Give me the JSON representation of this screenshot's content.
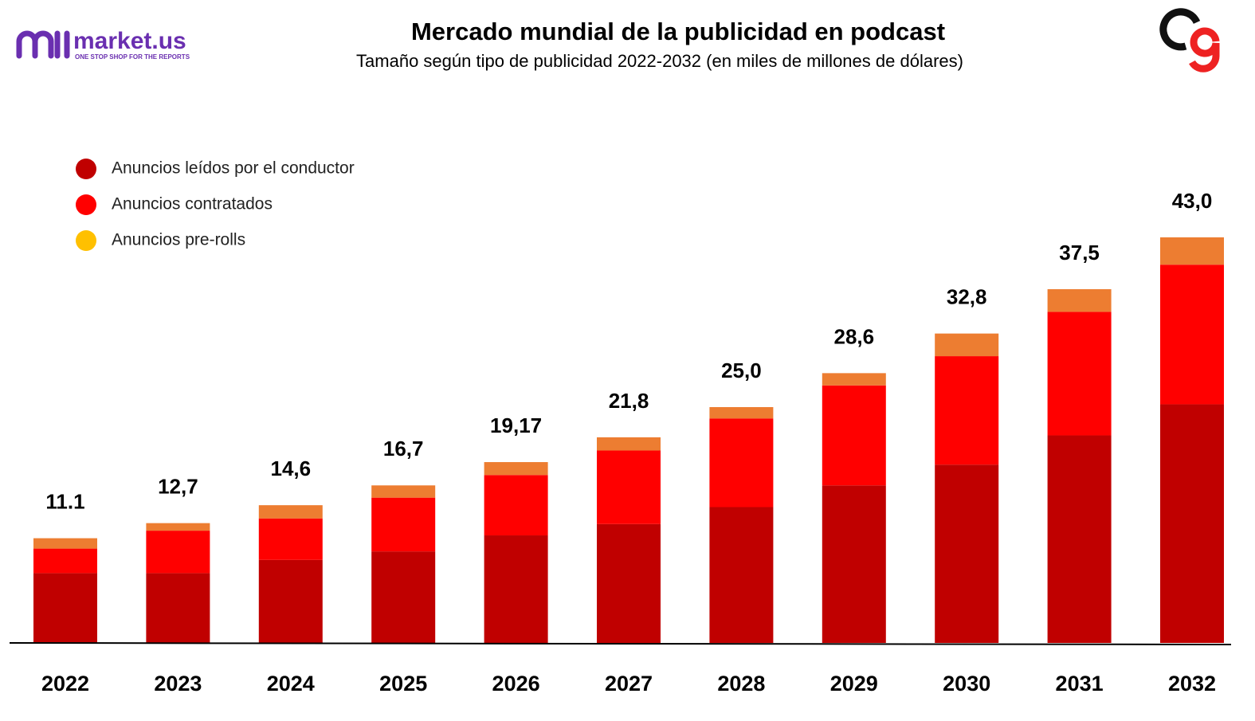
{
  "logo": {
    "name": "market.us",
    "tagline": "ONE STOP SHOP FOR THE REPORTS"
  },
  "chart_data": {
    "type": "stacked_bar",
    "title": "Mercado mundial de la publicidad en podcast",
    "subtitle": "Tamaño según tipo de publicidad 2022-2032 (en miles de millones de dólares)",
    "categories": [
      "2022",
      "2023",
      "2024",
      "2025",
      "2026",
      "2027",
      "2028",
      "2029",
      "2030",
      "2031",
      "2032"
    ],
    "series": [
      {
        "name": "Anuncios leídos por el conductor",
        "color": "#c00000",
        "values": [
          7.4,
          7.4,
          8.8,
          9.7,
          11.4,
          12.6,
          14.4,
          16.7,
          18.9,
          22.0,
          25.3
        ]
      },
      {
        "name": "Anuncios contratados",
        "color": "#ff0000",
        "values": [
          2.6,
          4.5,
          4.4,
          5.7,
          6.4,
          7.8,
          9.4,
          10.6,
          11.5,
          13.1,
          14.8
        ]
      },
      {
        "name": "Anuncios pre-rolls",
        "color": "#ed7d31",
        "legend_color": "#ffc000",
        "values": [
          1.1,
          0.8,
          1.4,
          1.3,
          1.37,
          1.4,
          1.2,
          1.3,
          2.4,
          2.4,
          2.9
        ]
      }
    ],
    "totals": [
      11.1,
      12.7,
      14.6,
      16.7,
      19.17,
      21.8,
      25.0,
      28.6,
      32.8,
      37.5,
      43.0
    ],
    "total_labels": [
      "11.1",
      "12,7",
      "14,6",
      "16,7",
      "19,17",
      "21,8",
      "25,0",
      "28,6",
      "32,8",
      "37,5",
      "43,0"
    ]
  }
}
